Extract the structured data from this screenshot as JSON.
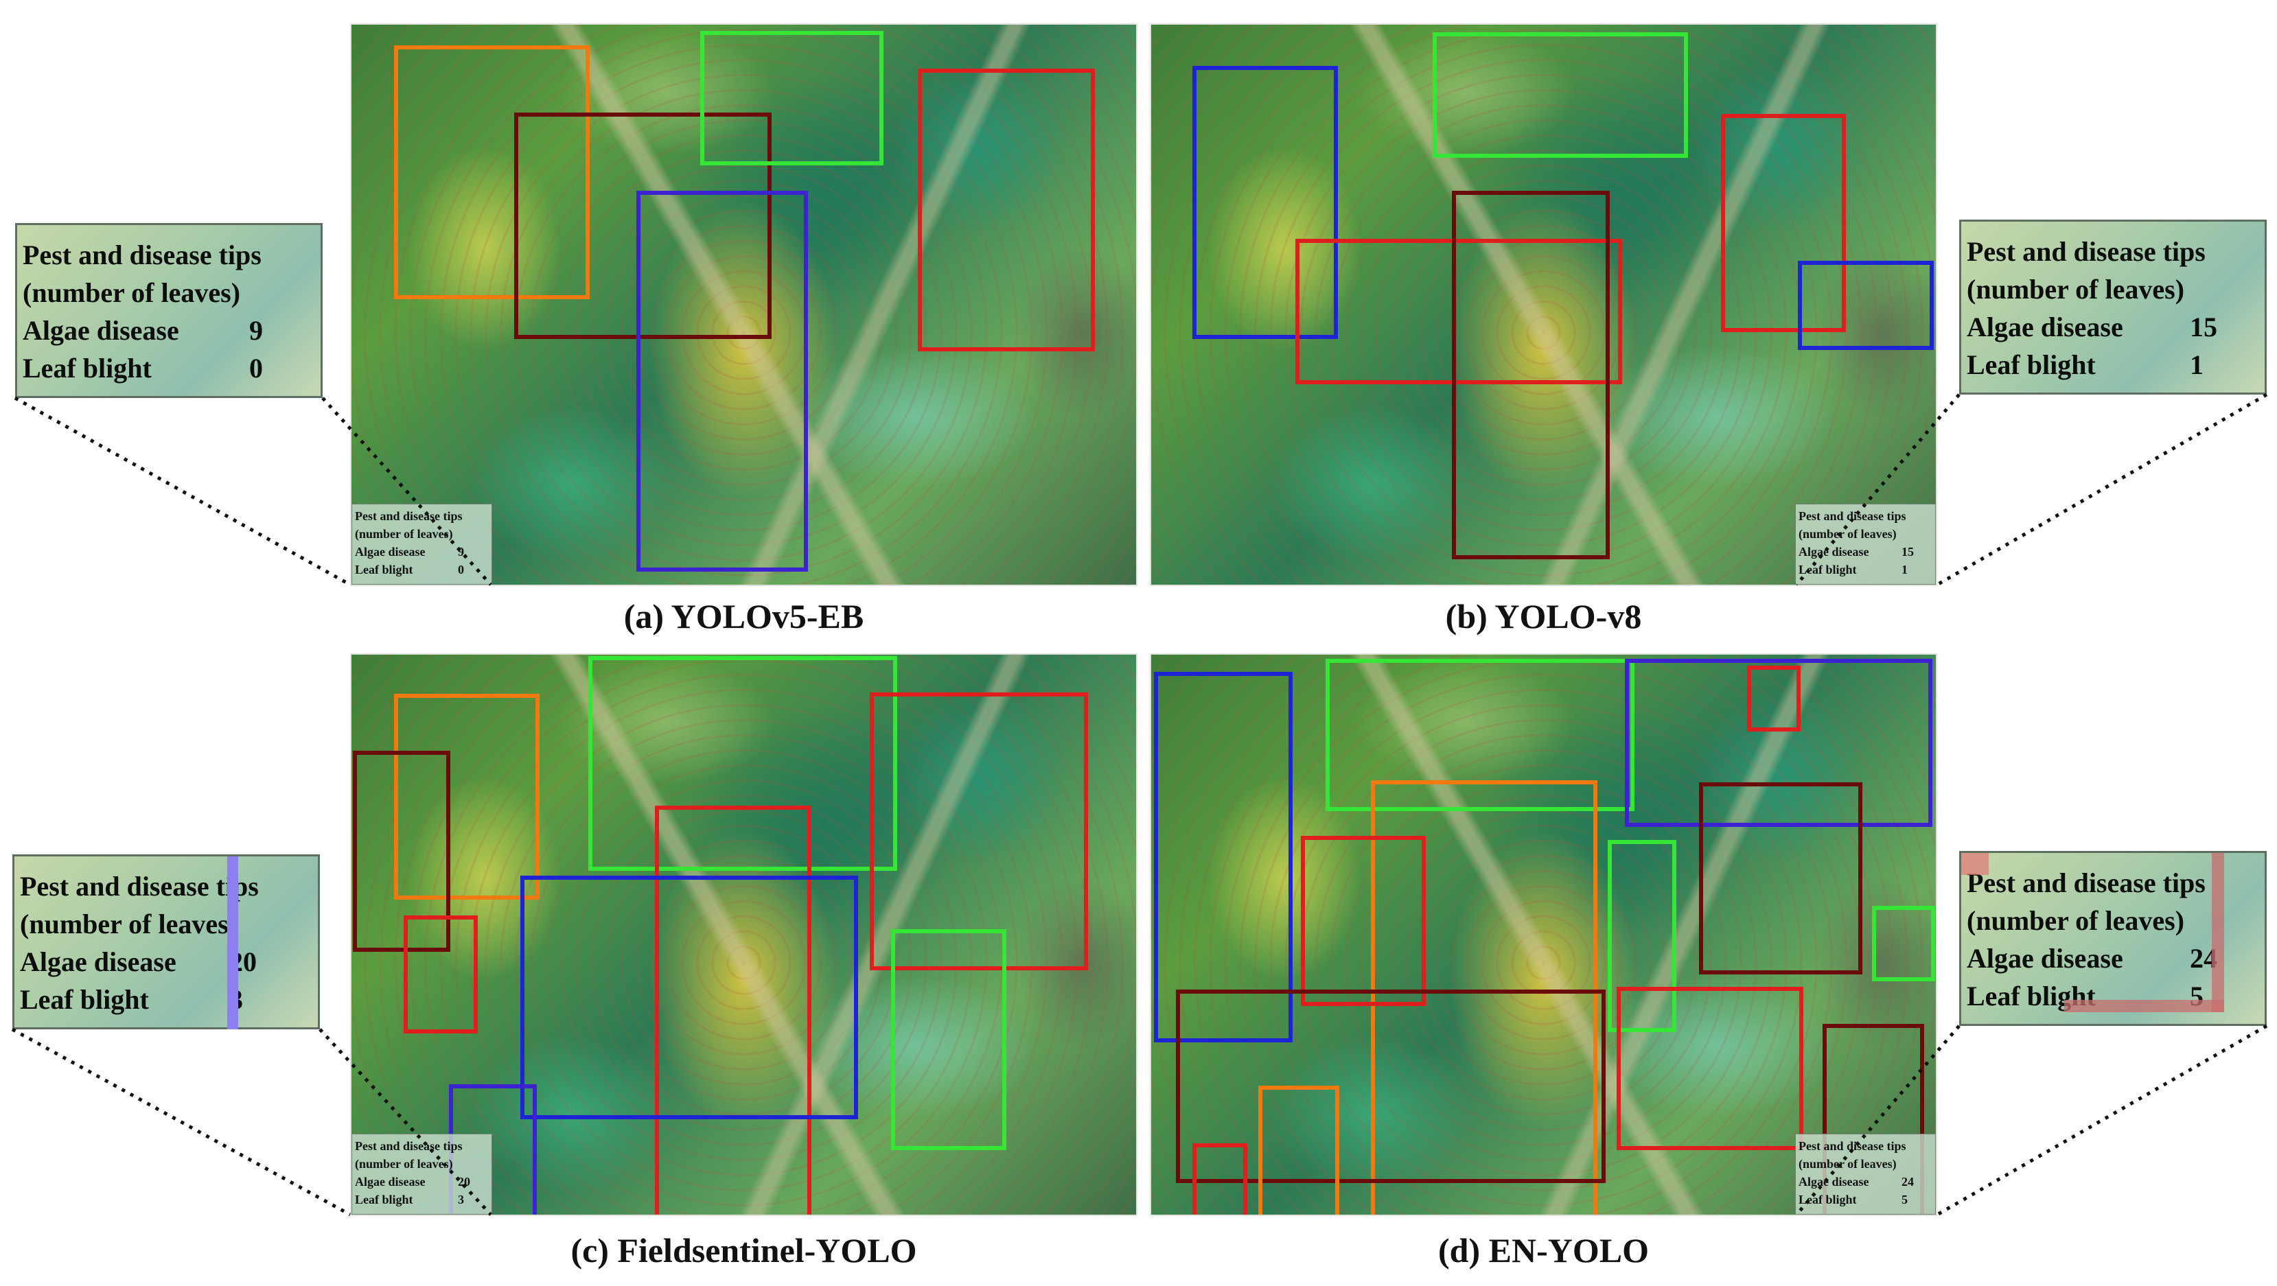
{
  "legend_title_1": "Pest and disease tips",
  "legend_title_2": "(number of leaves)",
  "algae_label": "Algae disease",
  "blight_label": "Leaf blight",
  "box_colors": {
    "red": "#e01e1e",
    "orange": "#f07a10",
    "green": "#35e637",
    "blue": "#1f23d6",
    "darkred": "#6b0c0c",
    "purple": "#3c22d0"
  },
  "panels": [
    {
      "caption": "(a) YOLOv5-EB",
      "algae_count": "9",
      "blight_count": "0",
      "detection_count": 6
    },
    {
      "caption": "(b) YOLO-v8",
      "algae_count": "15",
      "blight_count": "1",
      "detection_count": 6
    },
    {
      "caption": "(c) Fieldsentinel-YOLO",
      "algae_count": "20",
      "blight_count": "3",
      "detection_count": 10
    },
    {
      "caption": "(d) EN-YOLO",
      "algae_count": "24",
      "blight_count": "5",
      "detection_count": 16
    }
  ]
}
